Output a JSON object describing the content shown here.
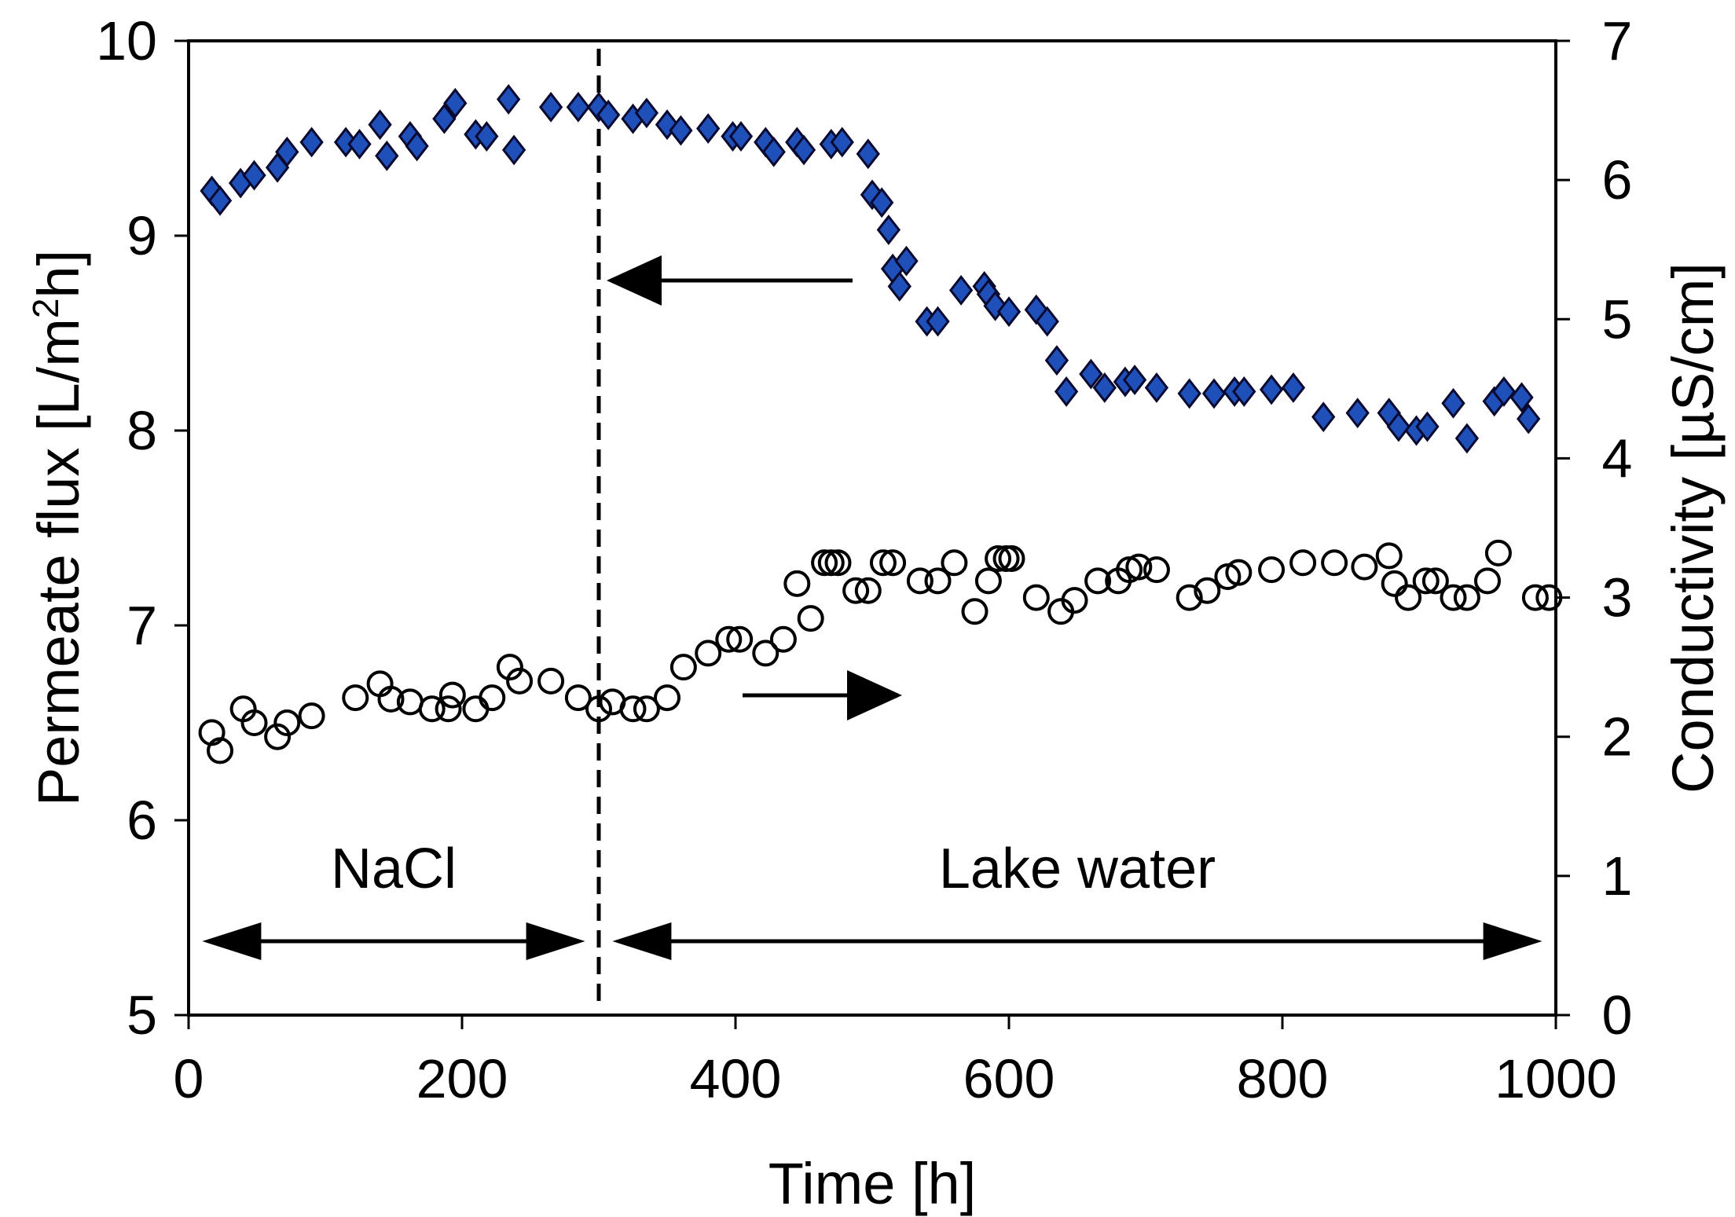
{
  "chart_data": {
    "type": "scatter",
    "xlabel": "Time [h]",
    "ylabel_left": {
      "main": "Permeate flux [L/m",
      "sup": "2",
      "end": "h]"
    },
    "ylabel_right": "Conductivity [µS/cm]",
    "xlim": [
      0,
      1000
    ],
    "ylim_left": [
      5,
      10
    ],
    "ylim_right": [
      0,
      7
    ],
    "x_ticks": [
      0,
      200,
      400,
      600,
      800,
      1000
    ],
    "y_left_ticks": [
      5,
      6,
      7,
      8,
      9,
      10
    ],
    "y_right_ticks": [
      0,
      1,
      2,
      3,
      4,
      5,
      6,
      7
    ],
    "divider_x": 300,
    "region_labels": [
      {
        "text": "NaCl",
        "x_from": 10,
        "x_to": 290
      },
      {
        "text": "Lake water",
        "x_from": 310,
        "x_to": 990
      }
    ],
    "colors": {
      "flux_marker": "#1F4FB8",
      "axis": "#000000"
    },
    "series": [
      {
        "name": "Permeate flux",
        "axis": "left",
        "marker": "diamond-filled",
        "points": [
          [
            17,
            9.23
          ],
          [
            23,
            9.18
          ],
          [
            38,
            9.27
          ],
          [
            48,
            9.31
          ],
          [
            65,
            9.35
          ],
          [
            72,
            9.43
          ],
          [
            90,
            9.48
          ],
          [
            115,
            9.48
          ],
          [
            125,
            9.47
          ],
          [
            140,
            9.57
          ],
          [
            145,
            9.41
          ],
          [
            162,
            9.51
          ],
          [
            167,
            9.46
          ],
          [
            187,
            9.6
          ],
          [
            195,
            9.68
          ],
          [
            210,
            9.52
          ],
          [
            218,
            9.51
          ],
          [
            234,
            9.7
          ],
          [
            238,
            9.44
          ],
          [
            265,
            9.66
          ],
          [
            285,
            9.66
          ],
          [
            300,
            9.66
          ],
          [
            307,
            9.62
          ],
          [
            325,
            9.6
          ],
          [
            335,
            9.63
          ],
          [
            350,
            9.57
          ],
          [
            360,
            9.54
          ],
          [
            380,
            9.55
          ],
          [
            398,
            9.51
          ],
          [
            404,
            9.51
          ],
          [
            422,
            9.48
          ],
          [
            428,
            9.43
          ],
          [
            445,
            9.48
          ],
          [
            450,
            9.44
          ],
          [
            470,
            9.47
          ],
          [
            478,
            9.48
          ],
          [
            497,
            9.42
          ],
          [
            500,
            9.21
          ],
          [
            507,
            9.17
          ],
          [
            512,
            9.03
          ],
          [
            515,
            8.83
          ],
          [
            520,
            8.74
          ],
          [
            525,
            8.87
          ],
          [
            540,
            8.56
          ],
          [
            548,
            8.56
          ],
          [
            565,
            8.72
          ],
          [
            582,
            8.74
          ],
          [
            585,
            8.7
          ],
          [
            590,
            8.64
          ],
          [
            600,
            8.61
          ],
          [
            620,
            8.62
          ],
          [
            628,
            8.56
          ],
          [
            635,
            8.36
          ],
          [
            642,
            8.2
          ],
          [
            660,
            8.29
          ],
          [
            670,
            8.22
          ],
          [
            685,
            8.25
          ],
          [
            692,
            8.26
          ],
          [
            708,
            8.22
          ],
          [
            732,
            8.19
          ],
          [
            750,
            8.19
          ],
          [
            765,
            8.2
          ],
          [
            772,
            8.2
          ],
          [
            792,
            8.21
          ],
          [
            808,
            8.22
          ],
          [
            830,
            8.07
          ],
          [
            855,
            8.09
          ],
          [
            878,
            8.09
          ],
          [
            885,
            8.02
          ],
          [
            898,
            8.0
          ],
          [
            906,
            8.02
          ],
          [
            925,
            8.14
          ],
          [
            935,
            7.96
          ],
          [
            955,
            8.15
          ],
          [
            962,
            8.2
          ],
          [
            975,
            8.17
          ],
          [
            980,
            8.06
          ]
        ]
      },
      {
        "name": "Conductivity",
        "axis": "right",
        "marker": "circle-open",
        "points": [
          [
            17,
            2.03
          ],
          [
            23,
            1.9
          ],
          [
            40,
            2.2
          ],
          [
            48,
            2.1
          ],
          [
            65,
            2.0
          ],
          [
            72,
            2.1
          ],
          [
            90,
            2.15
          ],
          [
            122,
            2.28
          ],
          [
            140,
            2.38
          ],
          [
            148,
            2.27
          ],
          [
            162,
            2.25
          ],
          [
            178,
            2.2
          ],
          [
            190,
            2.2
          ],
          [
            193,
            2.3
          ],
          [
            210,
            2.2
          ],
          [
            222,
            2.28
          ],
          [
            235,
            2.5
          ],
          [
            242,
            2.4
          ],
          [
            265,
            2.4
          ],
          [
            285,
            2.28
          ],
          [
            300,
            2.2
          ],
          [
            310,
            2.25
          ],
          [
            325,
            2.2
          ],
          [
            335,
            2.2
          ],
          [
            350,
            2.28
          ],
          [
            362,
            2.5
          ],
          [
            380,
            2.6
          ],
          [
            395,
            2.7
          ],
          [
            403,
            2.7
          ],
          [
            422,
            2.6
          ],
          [
            435,
            2.7
          ],
          [
            445,
            3.1
          ],
          [
            455,
            2.85
          ],
          [
            465,
            3.25
          ],
          [
            470,
            3.25
          ],
          [
            475,
            3.25
          ],
          [
            488,
            3.05
          ],
          [
            497,
            3.05
          ],
          [
            508,
            3.25
          ],
          [
            515,
            3.25
          ],
          [
            535,
            3.12
          ],
          [
            548,
            3.12
          ],
          [
            560,
            3.25
          ],
          [
            575,
            2.9
          ],
          [
            585,
            3.12
          ],
          [
            592,
            3.28
          ],
          [
            598,
            3.28
          ],
          [
            602,
            3.28
          ],
          [
            620,
            3.0
          ],
          [
            638,
            2.9
          ],
          [
            648,
            2.98
          ],
          [
            665,
            3.12
          ],
          [
            680,
            3.12
          ],
          [
            688,
            3.2
          ],
          [
            695,
            3.22
          ],
          [
            708,
            3.2
          ],
          [
            732,
            3.0
          ],
          [
            745,
            3.05
          ],
          [
            760,
            3.15
          ],
          [
            768,
            3.18
          ],
          [
            792,
            3.2
          ],
          [
            815,
            3.25
          ],
          [
            838,
            3.25
          ],
          [
            860,
            3.22
          ],
          [
            878,
            3.3
          ],
          [
            882,
            3.1
          ],
          [
            892,
            3.0
          ],
          [
            905,
            3.12
          ],
          [
            912,
            3.12
          ],
          [
            925,
            3.0
          ],
          [
            935,
            3.0
          ],
          [
            950,
            3.12
          ],
          [
            958,
            3.32
          ],
          [
            985,
            3.0
          ],
          [
            995,
            3.0
          ]
        ]
      }
    ]
  }
}
